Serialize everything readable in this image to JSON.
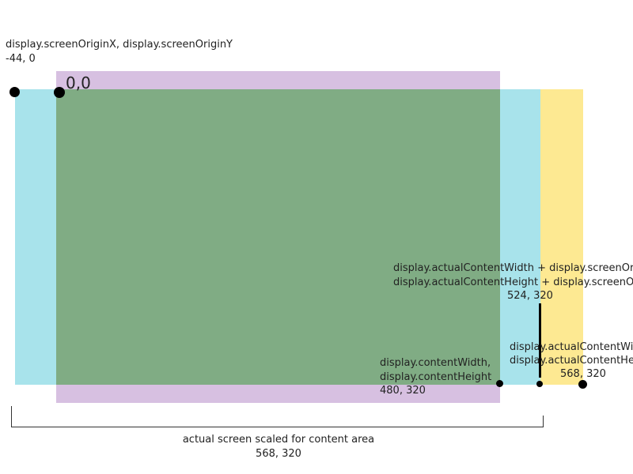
{
  "colors": {
    "cyan_region": "#a8e3eb",
    "yellow_region": "#fde992",
    "purple_region": "#d7c0e1",
    "green_overlap": "#80ac84",
    "dot": "#000000"
  },
  "labels": {
    "screen_origin_title": "display.screenOriginX, display.screenOriginY",
    "screen_origin_value": "-44, 0",
    "origin": "0,0",
    "actual_plus_origin_w": "display.actualContentWidth + display.screenOriginX,",
    "actual_plus_origin_h": "display.actualContentHeight + display.screenOriginY",
    "actual_plus_origin_value": "524, 320",
    "content_w": "display.contentWidth,",
    "content_h": "display.contentHeight",
    "content_value": "480, 320",
    "actual_w": "display.actualContentWidth,",
    "actual_h": "display.actualContentHeight",
    "actual_value": "568, 320",
    "scaled_title": "actual screen scaled for content area",
    "scaled_value": "568, 320"
  }
}
